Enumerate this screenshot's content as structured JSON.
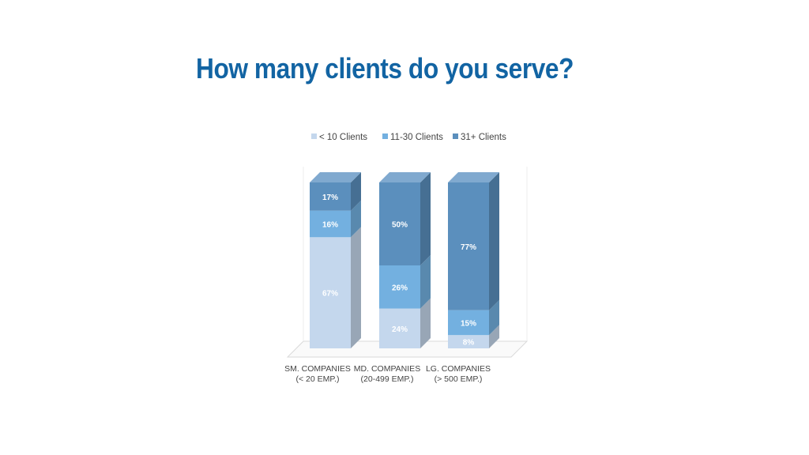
{
  "slide": {
    "title": "How many clients do you serve?"
  },
  "colors": {
    "title": "#1264a3",
    "text": "#444444",
    "floor": "#d9d9d9"
  },
  "chart_data": {
    "type": "bar",
    "stacked": true,
    "three_d": true,
    "unit": "%",
    "categories": [
      [
        "SM. COMPANIES",
        "(< 20 EMP.)"
      ],
      [
        "MD. COMPANIES",
        "(20-499 EMP.)"
      ],
      [
        "LG. COMPANIES",
        "(> 500 EMP.)"
      ]
    ],
    "series": [
      {
        "name": "< 10 Clients",
        "values": [
          67,
          24,
          8
        ],
        "color": "#c4d7ed",
        "side": "#98a6b6",
        "top": "#dde8f5"
      },
      {
        "name": "11-30 Clients",
        "values": [
          16,
          26,
          15
        ],
        "color": "#73b0e0",
        "side": "#5989ae",
        "top": "#9cc8ea"
      },
      {
        "name": "31+ Clients",
        "values": [
          17,
          50,
          77
        ],
        "color": "#5b8fbd",
        "side": "#466f93",
        "top": "#80a9cf"
      }
    ],
    "ylim": [
      0,
      100
    ],
    "legend_position": "top",
    "grid": false,
    "xlabel": "",
    "ylabel": ""
  }
}
